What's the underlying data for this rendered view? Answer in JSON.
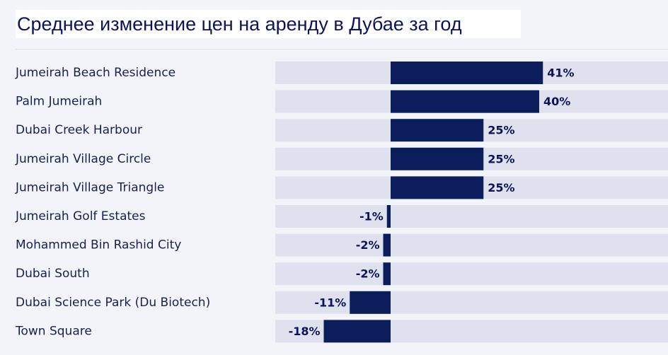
{
  "title": "Среднее изменение цен на аренду в Дубае за год",
  "colors": {
    "bar": "#0c1d5c",
    "track": "#dfe1ee",
    "text": "#17204f",
    "background": "#f3f4f9"
  },
  "chart_data": {
    "type": "bar",
    "orientation": "horizontal",
    "title": "Среднее изменение цен на аренду в Дубае за год",
    "xlabel": "",
    "ylabel": "",
    "unit": "%",
    "xlim": [
      -20,
      80
    ],
    "grid": false,
    "categories": [
      "Jumeirah Beach Residence",
      "Palm Jumeirah",
      "Dubai Creek Harbour",
      "Jumeirah Village Circle",
      "Jumeirah Village Triangle",
      "Jumeirah Golf Estates",
      "Mohammed Bin Rashid City",
      "Dubai South",
      "Dubai Science Park (Du Biotech)",
      "Town Square"
    ],
    "values": [
      41,
      40,
      25,
      25,
      25,
      -1,
      -2,
      -2,
      -11,
      -18
    ],
    "value_labels": [
      "41%",
      "40%",
      "25%",
      "25%",
      "25%",
      "-1%",
      "-2%",
      "-2%",
      "-11%",
      "-18%"
    ]
  }
}
